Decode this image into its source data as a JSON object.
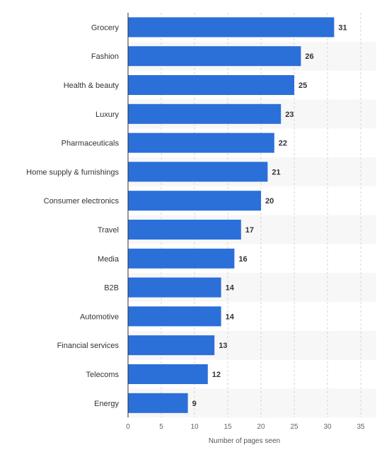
{
  "chart_data": {
    "type": "bar",
    "orientation": "horizontal",
    "categories": [
      "Grocery",
      "Fashion",
      "Health & beauty",
      "Luxury",
      "Pharmaceuticals",
      "Home supply & furnishings",
      "Consumer electronics",
      "Travel",
      "Media",
      "B2B",
      "Automotive",
      "Financial services",
      "Telecoms",
      "Energy"
    ],
    "values": [
      31,
      26,
      25,
      23,
      22,
      21,
      20,
      17,
      16,
      14,
      14,
      13,
      12,
      9
    ],
    "xlabel": "Number of pages seen",
    "ylabel": "",
    "xlim": [
      0,
      35
    ],
    "xticks": [
      0,
      5,
      10,
      15,
      20,
      25,
      30,
      35
    ],
    "grid": true,
    "bar_color": "#2b6fd9",
    "band_color": "#f7f7f7"
  }
}
